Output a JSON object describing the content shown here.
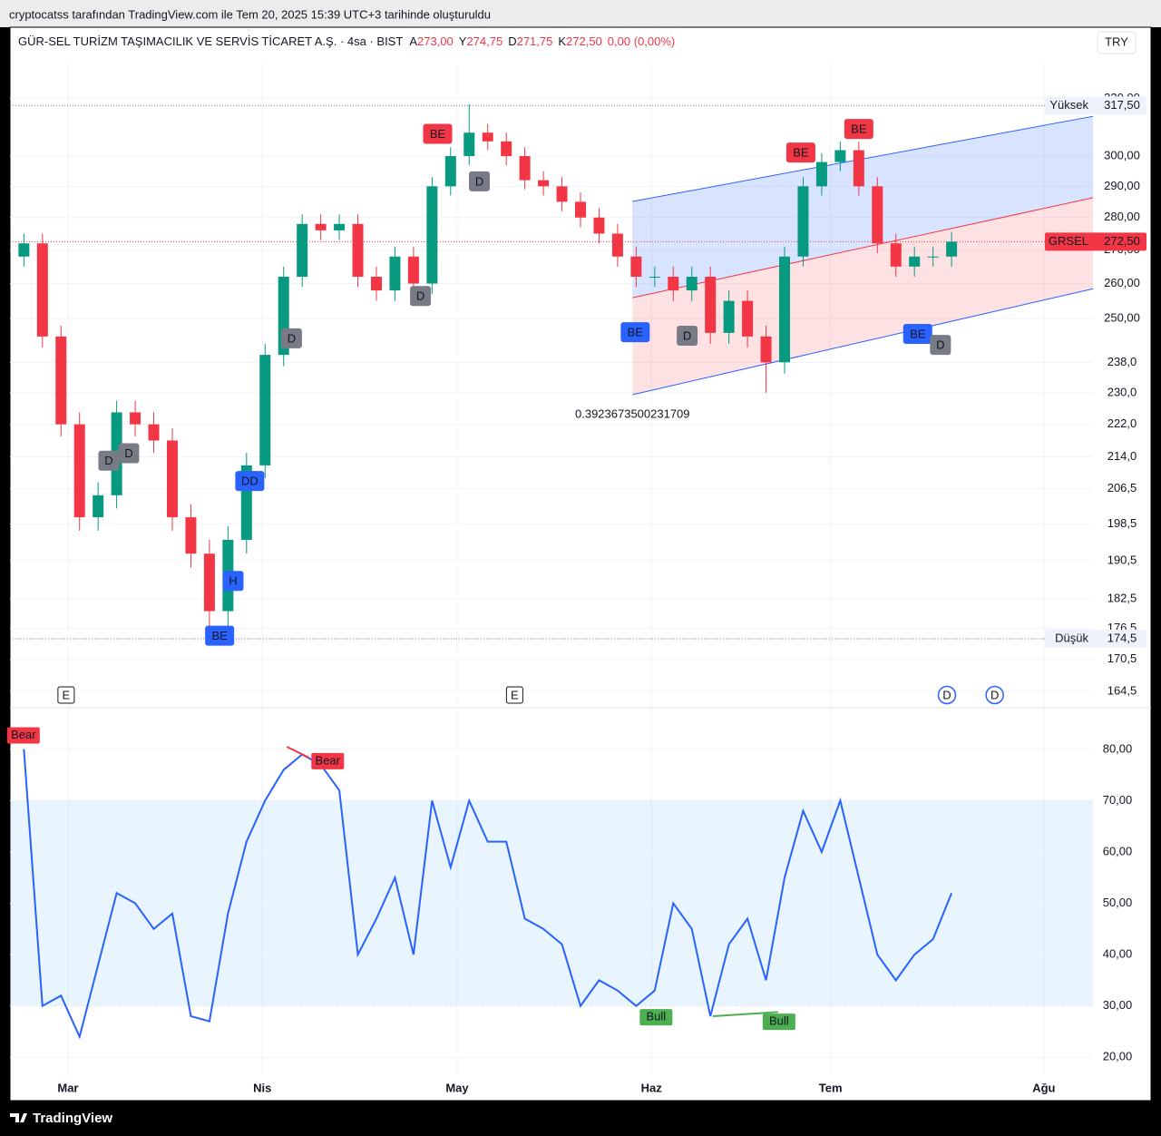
{
  "header": {
    "credit": "cryptocatss tarafından TradingView.com ile Tem 20, 2025 15:39 UTC+3 tarihinde oluşturuldu",
    "brand": "TradingView"
  },
  "chart_data": [
    {
      "type": "candlestick",
      "title": "GÜR-SEL TURİZM TAŞIMACILIK VE SERVİS TİCARET A.Ş. · 4sa · BIST",
      "ohlc_legend": [
        {
          "name": "A",
          "value": 273,
          "label": "273,00"
        },
        {
          "name": "Y",
          "value": 274.75,
          "label": "274,75"
        },
        {
          "name": "D",
          "value": 271.75,
          "label": "271,75"
        },
        {
          "name": "K",
          "value": 272.5,
          "label": "272,50"
        }
      ],
      "change": "0,00 (0,00%)",
      "currency": "TRY",
      "up_color": "#089981",
      "down_color": "#f23645",
      "x": [
        3,
        7,
        11,
        15,
        19,
        23,
        27,
        31,
        35,
        39,
        43,
        47,
        51,
        55,
        59,
        63,
        67,
        71,
        75,
        79,
        83,
        87,
        91,
        95,
        99,
        103,
        107,
        111,
        115,
        119,
        123,
        127,
        131,
        135,
        139,
        143,
        147,
        151,
        155,
        159,
        163,
        167,
        171,
        175,
        179,
        183,
        187,
        191,
        195,
        199,
        203
      ],
      "open": [
        268,
        272,
        245,
        222,
        200,
        205,
        225,
        222,
        218,
        200,
        192,
        180,
        195,
        212,
        240,
        262,
        278,
        276,
        278,
        262,
        258,
        268,
        260,
        290,
        300,
        308,
        305,
        300,
        292,
        290,
        285,
        280,
        275,
        268,
        262,
        262,
        258,
        262,
        246,
        255,
        245,
        238,
        268,
        290,
        298,
        302,
        290,
        272,
        265,
        268,
        268
      ],
      "high": [
        275,
        275,
        248,
        225,
        208,
        228,
        228,
        225,
        221,
        203,
        195,
        198,
        215,
        243,
        265,
        281,
        281,
        281,
        281,
        265,
        271,
        271,
        293,
        303,
        318,
        311,
        308,
        303,
        295,
        293,
        288,
        283,
        278,
        271,
        265,
        265,
        265,
        265,
        258,
        258,
        248,
        271,
        293,
        301,
        305,
        305,
        293,
        275,
        271,
        271,
        275.5
      ],
      "low": [
        265,
        242,
        219,
        197,
        197,
        202,
        219,
        215,
        197,
        189,
        174.5,
        177,
        192,
        209,
        237,
        259,
        273,
        273,
        259,
        255,
        255,
        257,
        257,
        287,
        297,
        302,
        297,
        289,
        287,
        282,
        277,
        272,
        265,
        259,
        259,
        255,
        255,
        243,
        243,
        242,
        230,
        235,
        265,
        287,
        295,
        287,
        269,
        262,
        262,
        265,
        265
      ],
      "close": [
        272,
        245,
        222,
        200,
        205,
        225,
        222,
        218,
        200,
        192,
        180,
        195,
        212,
        240,
        262,
        278,
        276,
        278,
        262,
        258,
        268,
        260,
        290,
        300,
        308,
        305,
        300,
        292,
        290,
        285,
        280,
        275,
        268,
        262,
        262,
        258,
        262,
        246,
        255,
        245,
        238,
        268,
        290,
        298,
        302,
        290,
        272,
        265,
        268,
        268,
        272.5
      ],
      "xlim": [
        0,
        246
      ],
      "xticks": [
        {
          "value": 12.5,
          "label": "Mar"
        },
        {
          "value": 54.4,
          "label": "Nis"
        },
        {
          "value": 96.4,
          "label": "May"
        },
        {
          "value": 138.3,
          "label": "Haz"
        },
        {
          "value": 176.9,
          "label": "Tem"
        },
        {
          "value": 222.9,
          "label": "Ağu"
        }
      ],
      "ylim": [
        161.5,
        346.7
      ],
      "log_scale": true,
      "grid": true,
      "yticks": [
        {
          "value": 164.5,
          "label": "164,5"
        },
        {
          "value": 170.5,
          "label": "170,5"
        },
        {
          "value": 176.5,
          "label": "176,5"
        },
        {
          "value": 182.5,
          "label": "182,5"
        },
        {
          "value": 190.5,
          "label": "190,5"
        },
        {
          "value": 198.5,
          "label": "198,5"
        },
        {
          "value": 206.5,
          "label": "206,5"
        },
        {
          "value": 214,
          "label": "214,0"
        },
        {
          "value": 222,
          "label": "222,0"
        },
        {
          "value": 230,
          "label": "230,0"
        },
        {
          "value": 238,
          "label": "238,0"
        },
        {
          "value": 250,
          "label": "250,00"
        },
        {
          "value": 260,
          "label": "260,00"
        },
        {
          "value": 270,
          "label": "270,00"
        },
        {
          "value": 280,
          "label": "280,00"
        },
        {
          "value": 290,
          "label": "290,00"
        },
        {
          "value": 300,
          "label": "300,00"
        },
        {
          "value": 320,
          "label": "320,00"
        }
      ],
      "price_labels": [
        {
          "name": "Yüksek",
          "value": 317.5,
          "label": "317,50",
          "color": "#787b86"
        },
        {
          "name": "Düşük",
          "value": 174.5,
          "label": "174,5",
          "color": "#787b86"
        },
        {
          "name": "GRSEL",
          "value": 272.5,
          "label": "272,50",
          "color": "#f23645"
        }
      ],
      "channel": {
        "x": [
          134.2,
          233.5
        ],
        "upper": [
          285.1,
          313.7
        ],
        "middle": [
          255.9,
          286.3
        ],
        "lower": [
          229.5,
          258.5
        ],
        "label": "0.3923673500231709"
      },
      "markers": [
        {
          "label": "BE",
          "color": "#f23645",
          "x": 92.2,
          "price": 307.6
        },
        {
          "label": "D",
          "color": "#787b86",
          "x": 101.2,
          "price": 291.6
        },
        {
          "label": "D",
          "color": "#787b86",
          "x": 88.5,
          "price": 256.4
        },
        {
          "label": "D",
          "color": "#787b86",
          "x": 60.7,
          "price": 244.5
        },
        {
          "label": "D",
          "color": "#787b86",
          "x": 21.3,
          "price": 213.1
        },
        {
          "label": "D",
          "color": "#787b86",
          "x": 25.6,
          "price": 214.9
        },
        {
          "label": "DD",
          "color": "#2962ff",
          "x": 51.7,
          "price": 208.3
        },
        {
          "label": "H",
          "color": "#2962ff",
          "x": 48.1,
          "price": 186.2
        },
        {
          "label": "BE",
          "color": "#2962ff",
          "x": 45.2,
          "price": 175.1
        },
        {
          "label": "BE",
          "color": "#2962ff",
          "x": 134.8,
          "price": 246.2
        },
        {
          "label": "D",
          "color": "#787b86",
          "x": 146,
          "price": 245.2
        },
        {
          "label": "BE",
          "color": "#f23645",
          "x": 170.5,
          "price": 301.2
        },
        {
          "label": "BE",
          "color": "#f23645",
          "x": 183,
          "price": 309.3
        },
        {
          "label": "BE",
          "color": "#2962ff",
          "x": 195.7,
          "price": 245.7
        },
        {
          "label": "D",
          "color": "#787b86",
          "x": 200.6,
          "price": 242.7
        }
      ],
      "events": [
        {
          "label": "E",
          "x": 12.1
        },
        {
          "label": "E",
          "x": 108.8
        },
        {
          "label": "D",
          "x": 202
        },
        {
          "label": "D",
          "x": 212.3
        }
      ]
    },
    {
      "type": "line",
      "color": "#2962ff",
      "x": [
        3,
        7,
        11,
        15,
        19,
        23,
        27,
        31,
        35,
        39,
        43,
        47,
        51,
        55,
        59,
        63,
        67,
        71,
        75,
        79,
        83,
        87,
        91,
        95,
        99,
        103,
        107,
        111,
        115,
        119,
        123,
        127,
        131,
        135,
        139,
        143,
        147,
        151,
        155,
        159,
        163,
        167,
        171,
        175,
        179,
        183,
        187,
        191,
        195,
        199,
        203
      ],
      "values": [
        80,
        30,
        32,
        24,
        38,
        52,
        50,
        45,
        48,
        28,
        27,
        48,
        62,
        70,
        76,
        79,
        77,
        72,
        40,
        47,
        55,
        40,
        70,
        57,
        70,
        62,
        62,
        47,
        45,
        42,
        30,
        35,
        33,
        30,
        33,
        50,
        45,
        28,
        42,
        47,
        35,
        55,
        68,
        60,
        70,
        55,
        40,
        35,
        40,
        43,
        52
      ],
      "xlim": [
        0,
        246
      ],
      "ylim": [
        16.5,
        88.1
      ],
      "yticks": [
        {
          "value": 20,
          "label": "20,00"
        },
        {
          "value": 30,
          "label": "30,00"
        },
        {
          "value": 40,
          "label": "40,00"
        },
        {
          "value": 50,
          "label": "50,00"
        },
        {
          "value": 60,
          "label": "60,00"
        },
        {
          "value": 70,
          "label": "70,00"
        },
        {
          "value": 80,
          "label": "80,00"
        }
      ],
      "band": [
        30,
        70
      ],
      "levels": [
        70,
        50,
        30
      ],
      "annotations": [
        {
          "label": "Bear",
          "color": "#f23645",
          "x": 2.7,
          "value": 82.7
        },
        {
          "label": "Bear",
          "color": "#f23645",
          "x": 68.3,
          "value": 77.7
        },
        {
          "label": "Bull",
          "color": "#4caf50",
          "x": 139.1,
          "value": 27.8
        },
        {
          "label": "Bull",
          "color": "#4caf50",
          "x": 165.6,
          "value": 26.9
        }
      ],
      "lines": [
        {
          "color": "#f23645",
          "x": [
            59.7,
            64.4
          ],
          "values": [
            80.5,
            78.4
          ]
        },
        {
          "color": "#4caf50",
          "x": [
            151.5,
            165.6
          ],
          "values": [
            28,
            28.8
          ]
        }
      ]
    }
  ]
}
